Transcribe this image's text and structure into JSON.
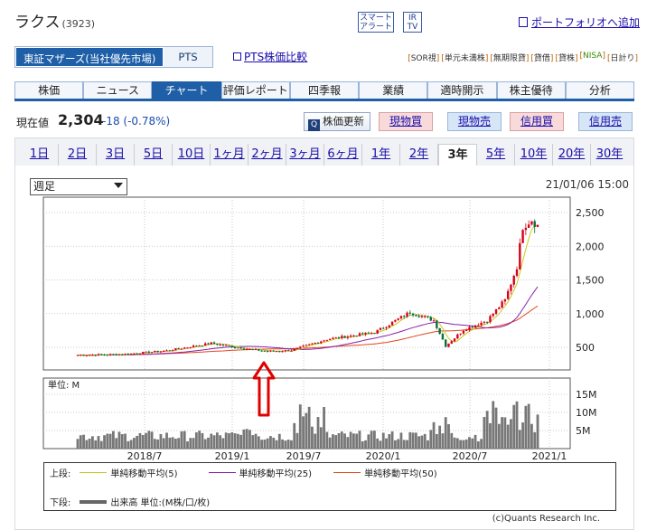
{
  "header": {
    "stock_name": "ラクス",
    "stock_code": "(3923)",
    "smart_alert_line1": "スマート",
    "smart_alert_line2": "アラート",
    "ir_line1": "IR",
    "ir_line2": "TV",
    "portfolio_link": "ポートフォリオへ追加"
  },
  "market": {
    "main": "東証マザーズ(当社優先市場)",
    "pts": "PTS",
    "pts_compare": "PTS株価比較"
  },
  "tags": [
    {
      "label": "SOR視"
    },
    {
      "label": "単元未満株"
    },
    {
      "label": "無期限貸"
    },
    {
      "label": "貸借"
    },
    {
      "label": "貸株"
    },
    {
      "label": "NISA"
    },
    {
      "label": "日計り"
    }
  ],
  "main_tabs": [
    {
      "label": "株価"
    },
    {
      "label": "ニュース"
    },
    {
      "label": "チャート"
    },
    {
      "label": "評価レポート"
    },
    {
      "label": "四季報"
    },
    {
      "label": "業績"
    },
    {
      "label": "適時開示"
    },
    {
      "label": "株主優待"
    },
    {
      "label": "分析"
    }
  ],
  "active_main_tab": "チャート",
  "price": {
    "label": "現在値",
    "value": "2,304",
    "change": "-18 (-0.78%)",
    "change_color": "#1a4db0"
  },
  "buttons": {
    "refresh": "株価更新",
    "spot_buy": "現物買",
    "spot_sell": "現物売",
    "margin_buy": "信用買",
    "margin_sell": "信用売"
  },
  "period_tabs": [
    {
      "label": "1日"
    },
    {
      "label": "2日"
    },
    {
      "label": "3日"
    },
    {
      "label": "5日"
    },
    {
      "label": "10日"
    },
    {
      "label": "1ヶ月"
    },
    {
      "label": "2ヶ月"
    },
    {
      "label": "3ヶ月"
    },
    {
      "label": "6ヶ月"
    },
    {
      "label": "1年"
    },
    {
      "label": "2年"
    },
    {
      "label": "3年"
    },
    {
      "label": "5年"
    },
    {
      "label": "10年"
    },
    {
      "label": "20年"
    },
    {
      "label": "30年"
    }
  ],
  "active_period": "3年",
  "chart": {
    "interval": "週足",
    "datetime": "21/01/06 15:00",
    "volume_unit_label": "単位: M",
    "price_ticks": [
      "2,500",
      "2,000",
      "1,500",
      "1,000",
      "500"
    ],
    "volume_ticks": [
      "15M",
      "10M",
      "5M"
    ],
    "x_ticks": [
      "2018/7",
      "2019/1",
      "2019/7",
      "2020/1",
      "2020/7",
      "2021/1"
    ],
    "colors": {
      "up": "#d8001a",
      "down": "#0a6e3a",
      "ma5": "#c8c820",
      "ma25": "#8a1fa8",
      "ma50": "#e04818",
      "volume": "#777777",
      "annotation_arrow": "#e00000"
    },
    "annotation": "red-up-arrow"
  },
  "legend": {
    "upper_label": "上段:",
    "lower_label": "下段:",
    "ma5": "単純移動平均(5)",
    "ma25": "単純移動平均(25)",
    "ma50": "単純移動平均(50)",
    "volume": "出来高 単位:(M株/口/枚)"
  },
  "copyright": "(c)Quants Research Inc."
}
